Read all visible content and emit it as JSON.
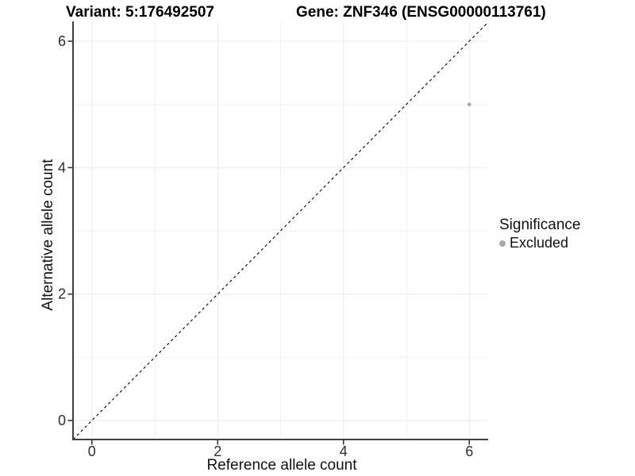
{
  "chart_data": {
    "type": "scatter",
    "title_left": "Variant: 5:176492507",
    "title_right": "Gene: ZNF346 (ENSG00000113761)",
    "xlabel": "Reference allele count",
    "ylabel": "Alternative allele count",
    "xlim": [
      -0.3,
      6.3
    ],
    "ylim": [
      -0.3,
      6.3
    ],
    "x_ticks": [
      0,
      2,
      4,
      6
    ],
    "y_ticks": [
      0,
      2,
      4,
      6
    ],
    "x_gridlines_major": [
      0,
      2,
      4,
      6
    ],
    "x_gridlines_minor": [
      1,
      3,
      5
    ],
    "y_gridlines_major": [
      0,
      2,
      4,
      6
    ],
    "y_gridlines_minor": [
      1,
      3,
      5
    ],
    "grid": true,
    "reference_line": {
      "type": "identity",
      "style": "dashed",
      "color": "#000000"
    },
    "points": [
      {
        "x": 6,
        "y": 5,
        "series": "Excluded"
      }
    ],
    "legend": {
      "title": "Significance",
      "position": "right",
      "entries": [
        {
          "label": "Excluded",
          "color": "#aaaaaa"
        }
      ]
    },
    "colors": {
      "background": "#ffffff",
      "grid_major": "#ededed",
      "grid_minor": "#f2f2f2",
      "axis_line": "#404040",
      "tick_mark": "#333333",
      "tick_text": "#2e2e2e",
      "point": "#aaaaaa"
    }
  }
}
